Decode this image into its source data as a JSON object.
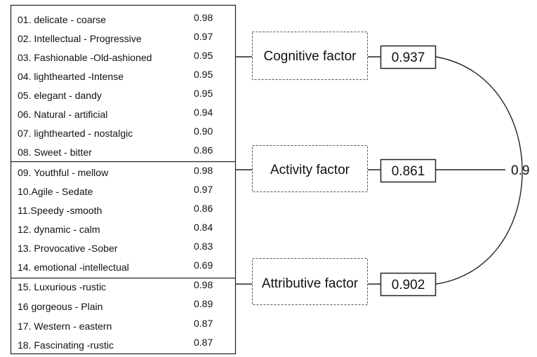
{
  "groups": [
    {
      "items": [
        {
          "label": "01. delicate - coarse",
          "value": "0.98"
        },
        {
          "label": "02. Intellectual - Progressive",
          "value": "0.97"
        },
        {
          "label": "03. Fashionable -Old-ashioned",
          "value": "0.95"
        },
        {
          "label": "04. lighthearted -Intense",
          "value": "0.95"
        },
        {
          "label": "05. elegant - dandy",
          "value": "0.95"
        },
        {
          "label": "06. Natural - artificial",
          "value": "0.94"
        },
        {
          "label": "07. lighthearted - nostalgic",
          "value": "0.90"
        },
        {
          "label": "08. Sweet - bitter",
          "value": "0.86"
        }
      ]
    },
    {
      "items": [
        {
          "label": "09. Youthful - mellow",
          "value": "0.98"
        },
        {
          "label": "10.Agile - Sedate",
          "value": "0.97"
        },
        {
          "label": "11.Speedy -smooth",
          "value": "0.86"
        },
        {
          "label": "12. dynamic - calm",
          "value": "0.84"
        },
        {
          "label": "13. Provocative -Sober",
          "value": "0.83"
        },
        {
          "label": "14. emotional -intellectual",
          "value": "0.69"
        }
      ]
    },
    {
      "items": [
        {
          "label": "15. Luxurious -rustic",
          "value": "0.98"
        },
        {
          "label": "16 gorgeous - Plain",
          "value": "0.89"
        },
        {
          "label": "17. Western - eastern",
          "value": "0.87"
        },
        {
          "label": "18. Fascinating -rustic",
          "value": "0.87"
        }
      ]
    }
  ],
  "factors": [
    {
      "name": "Cognitive factor",
      "loading": "0.937"
    },
    {
      "name": "Activity factor",
      "loading": "0.861"
    },
    {
      "name": "Attributive factor",
      "loading": "0.902"
    }
  ],
  "correlation": "0.9"
}
